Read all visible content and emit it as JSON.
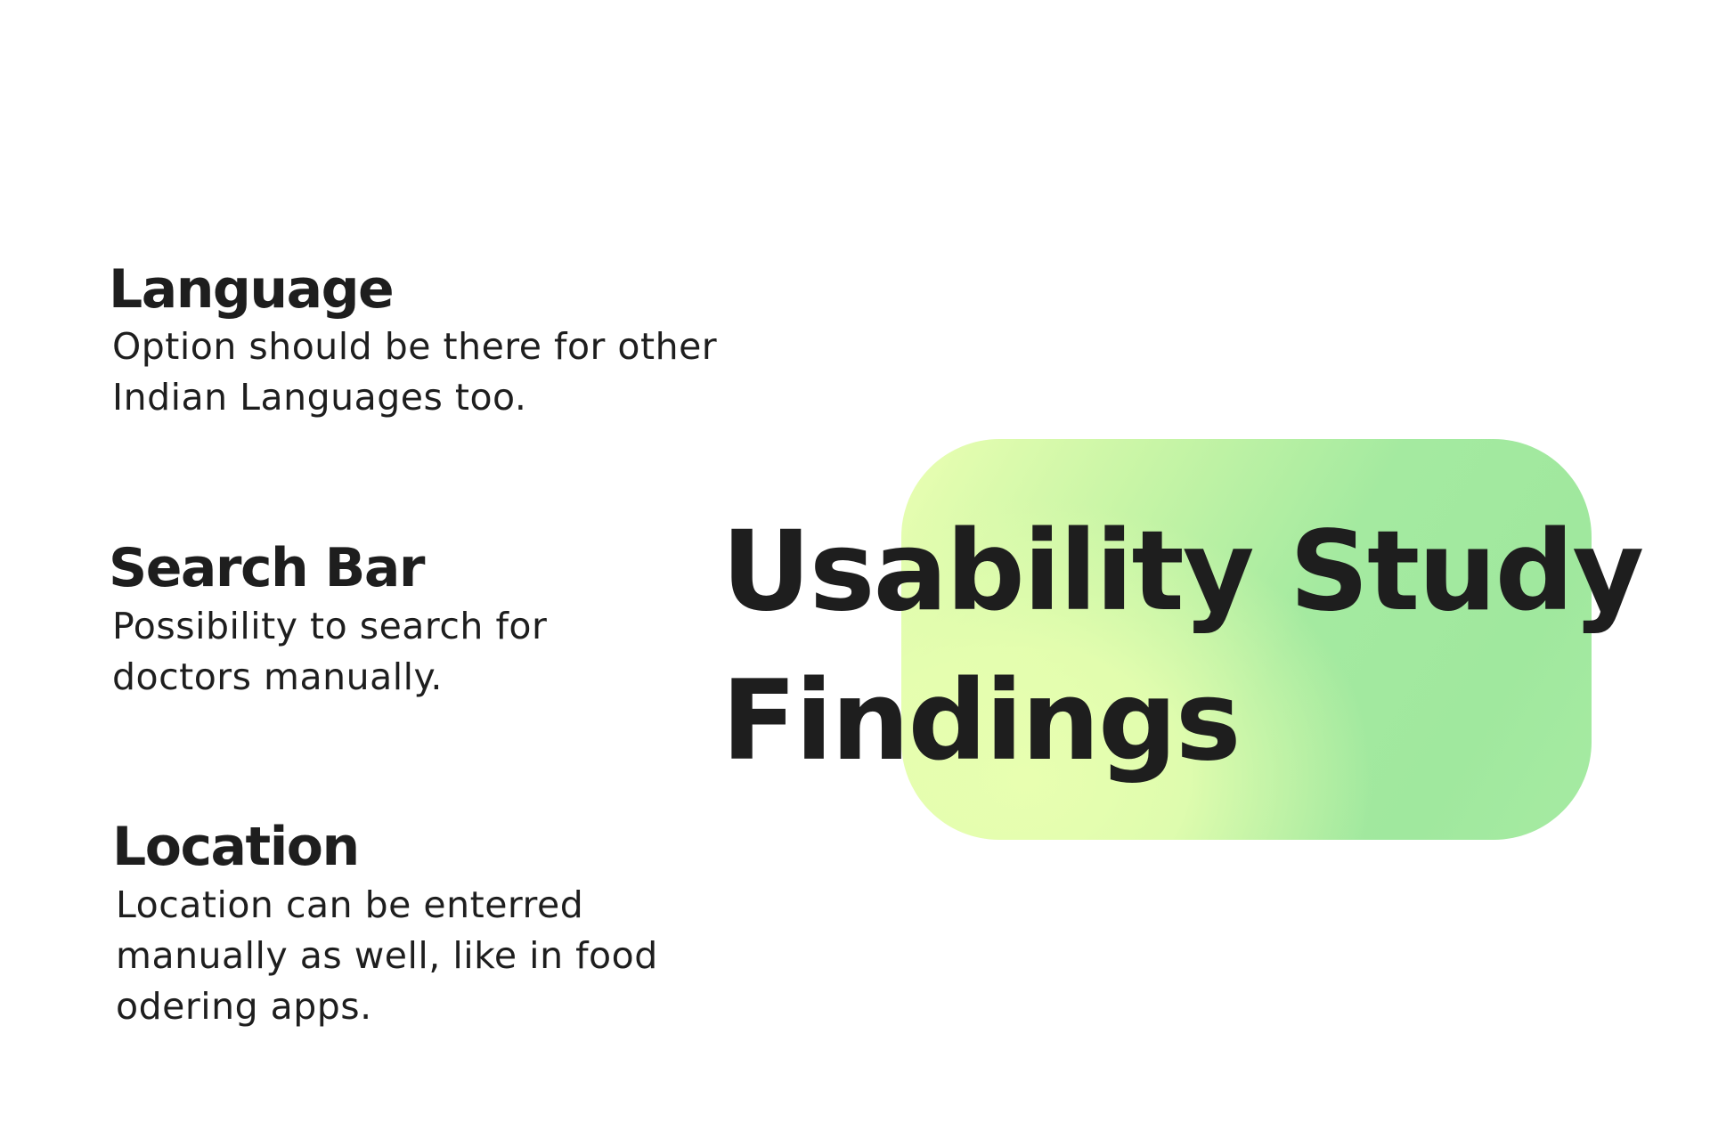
{
  "hero": {
    "title": "Usability Study\nFindings",
    "gradient_colors": [
      "#ebffb2",
      "#c8f5a6",
      "#a0e89e"
    ]
  },
  "findings": [
    {
      "title": "Language",
      "body": "Option should be there for other\nIndian Languages too."
    },
    {
      "title": "Search Bar",
      "body": "Possibility to search for\ndoctors manually."
    },
    {
      "title": "Location",
      "body": "Location can be enterred\nmanually as well, like in food\nodering apps."
    }
  ],
  "text_color": "#1e1e1e",
  "background_color": "#ffffff"
}
